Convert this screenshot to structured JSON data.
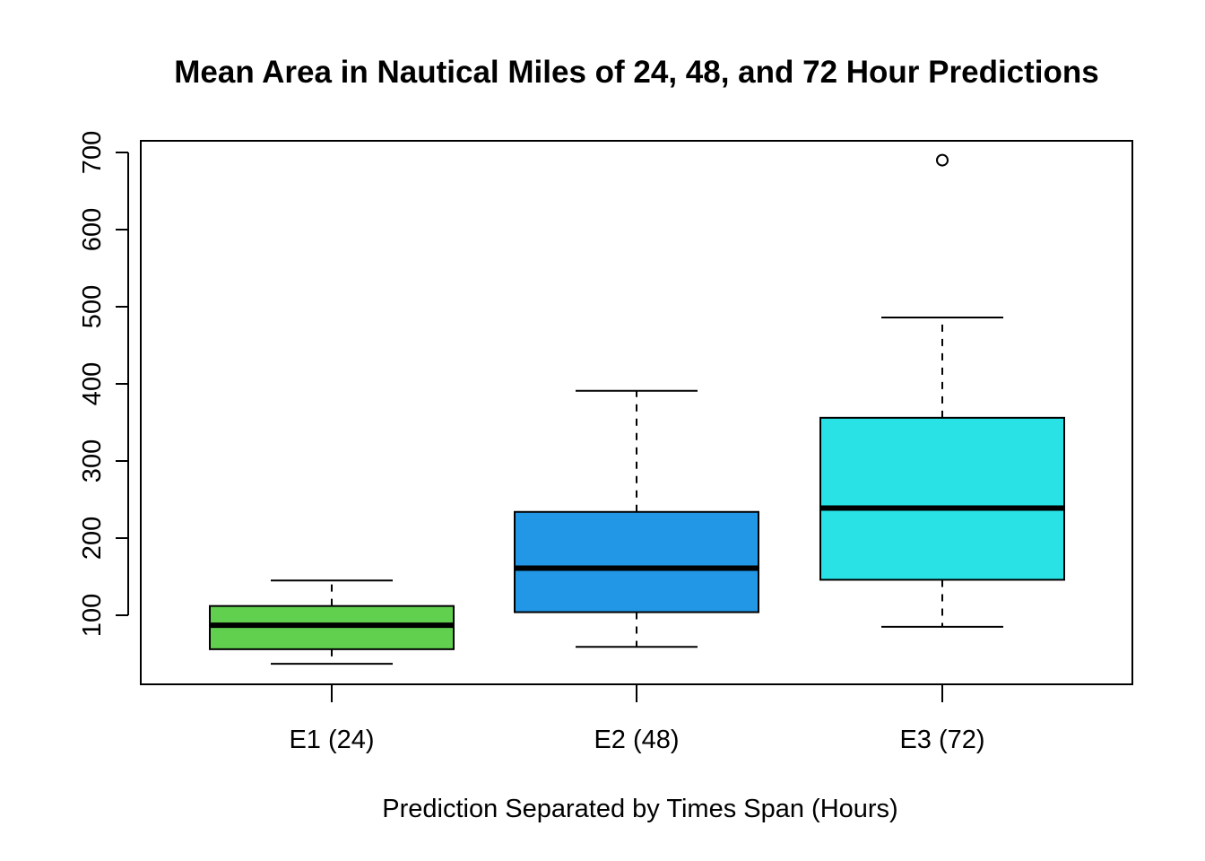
{
  "chart_data": {
    "type": "boxplot",
    "title": "Mean Area in Nautical Miles of 24, 48, and 72 Hour Predictions",
    "xlabel": "Prediction Separated by Times Span (Hours)",
    "ylabel": "",
    "ylim": [
      0,
      720
    ],
    "yticks": [
      100,
      200,
      300,
      400,
      500,
      600,
      700
    ],
    "categories": [
      "E1 (24)",
      "E2 (48)",
      "E3 (72)"
    ],
    "boxes": [
      {
        "category": "E1 (24)",
        "min": 37,
        "q1": 56,
        "median": 87,
        "q3": 112,
        "max": 145,
        "outliers": [],
        "color": "#61D04F"
      },
      {
        "category": "E2 (48)",
        "min": 59,
        "q1": 104,
        "median": 161,
        "q3": 234,
        "max": 391,
        "outliers": [],
        "color": "#2297E6"
      },
      {
        "category": "E3 (72)",
        "min": 85,
        "q1": 146,
        "median": 239,
        "q3": 356,
        "max": 486,
        "outliers": [
          690
        ],
        "color": "#28E2E5"
      }
    ],
    "grid": false,
    "legend": "none"
  }
}
